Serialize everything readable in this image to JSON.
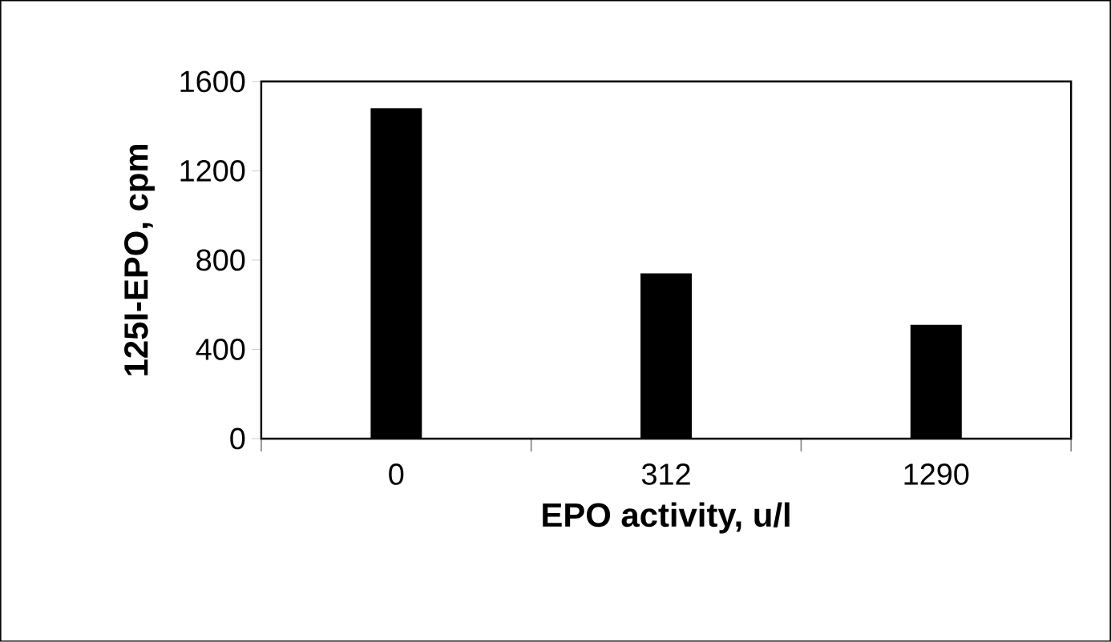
{
  "chart_data": {
    "type": "bar",
    "categories": [
      "0",
      "312",
      "1290"
    ],
    "values": [
      1480,
      740,
      510
    ],
    "color": "#000000",
    "xlabel": "EPO activity, u/l",
    "ylabel": "125I-EPO, cpm",
    "ylim": [
      0,
      1600
    ],
    "yticks": [
      0,
      400,
      800,
      1200,
      1600
    ]
  }
}
